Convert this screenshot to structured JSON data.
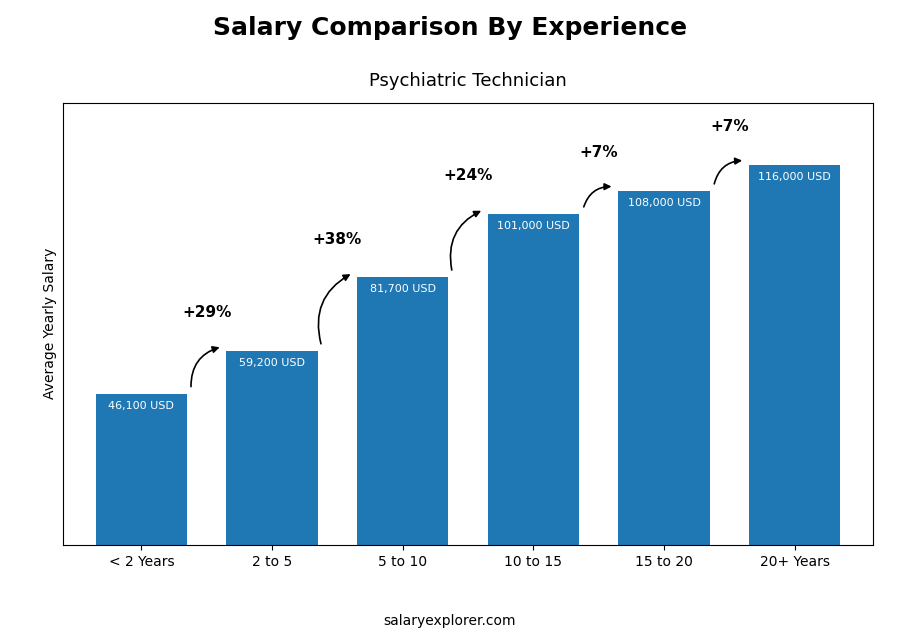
{
  "chart_data": {
    "type": "bar",
    "title": "Salary Comparison By Experience",
    "subtitle": "Psychiatric Technician",
    "categories": [
      "< 2 Years",
      "2 to 5",
      "5 to 10",
      "10 to 15",
      "15 to 20",
      "20+ Years"
    ],
    "values": [
      46100,
      59200,
      81700,
      101000,
      108000,
      116000
    ],
    "value_labels": [
      "46,100 USD",
      "59,200 USD",
      "81,700 USD",
      "101,000 USD",
      "108,000 USD",
      "116,000 USD"
    ],
    "data_labels": true,
    "annotations": [
      "+29%",
      "+38%",
      "+24%",
      "+7%",
      "+7%"
    ],
    "ylabel": "Average Yearly Salary",
    "footer": "salaryexplorer.com",
    "ylim": [
      0,
      135000
    ],
    "tick_labels": "x",
    "grid": false
  }
}
